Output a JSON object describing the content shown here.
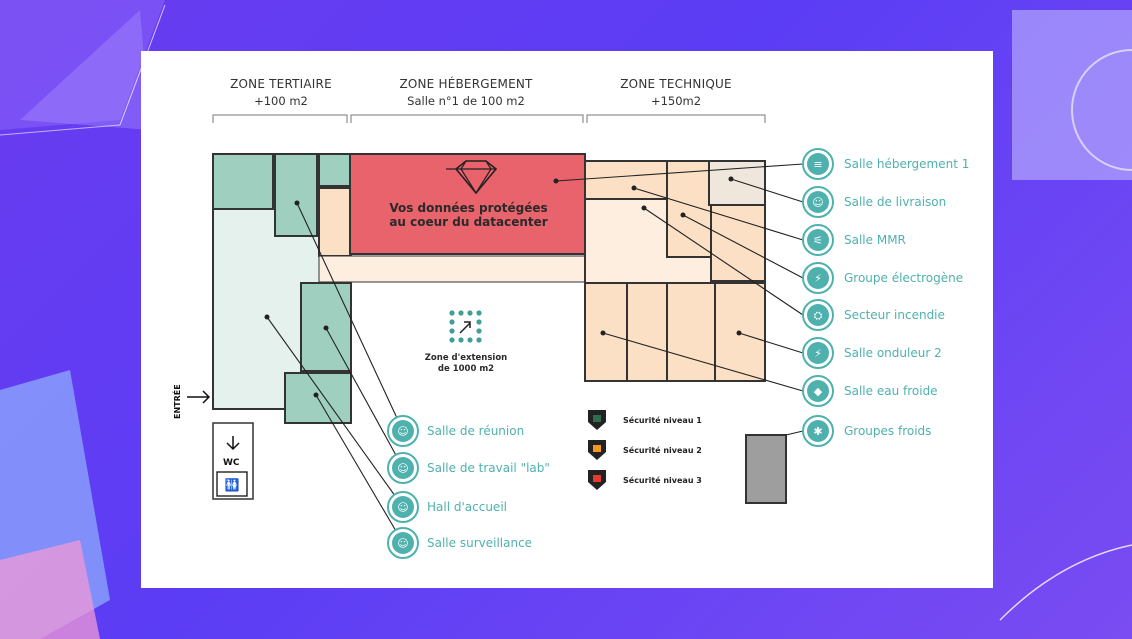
{
  "zones": [
    {
      "title": "ZONE TERTIAIRE",
      "subtitle": "+100 m2"
    },
    {
      "title": "ZONE HÉBERGEMENT",
      "subtitle": "Salle n°1 de 100 m2"
    },
    {
      "title": "ZONE TECHNIQUE",
      "subtitle": "+150m2"
    }
  ],
  "datacenter": {
    "line1": "Vos données protégées",
    "line2": "au coeur du datacenter"
  },
  "extension": {
    "line1": "Zone d'extension",
    "line2": "de 1000 m2"
  },
  "entrance": "ENTRÉE",
  "wc": "WC",
  "right_labels": [
    {
      "text": "Salle hébergement 1",
      "icon": "server-icon"
    },
    {
      "text": "Salle de livraison",
      "icon": "delivery-person-icon"
    },
    {
      "text": "Salle MMR",
      "icon": "cable-icon"
    },
    {
      "text": "Groupe électrogène",
      "icon": "lightning-icon"
    },
    {
      "text": "Secteur incendie",
      "icon": "fire-extinguisher-icon"
    },
    {
      "text": "Salle onduleur 2",
      "icon": "lightning-icon"
    },
    {
      "text": "Salle eau froide",
      "icon": "water-drop-icon"
    },
    {
      "text": "Groupes froids",
      "icon": "snowflake-icon"
    }
  ],
  "bottom_labels": [
    {
      "text": "Salle de réunion",
      "icon": "people-icon"
    },
    {
      "text": "Salle de travail \"lab\"",
      "icon": "worker-icon"
    },
    {
      "text": "Hall d'accueil",
      "icon": "people-icon"
    },
    {
      "text": "Salle surveillance",
      "icon": "guard-icon"
    }
  ],
  "security": [
    {
      "text": "Sécurité niveau 1",
      "color": "#2f6b4f"
    },
    {
      "text": "Sécurité niveau 2",
      "color": "#f39a1e"
    },
    {
      "text": "Sécurité niveau 3",
      "color": "#e33b2e"
    }
  ],
  "colors": {
    "teal": "#4fb1ad",
    "tertiary": "#e5f1ec",
    "tertiary_dark": "#9fd0bf",
    "hosting": "#e8636c",
    "technical": "#fce0c5",
    "corridor": "#fdeee0"
  }
}
